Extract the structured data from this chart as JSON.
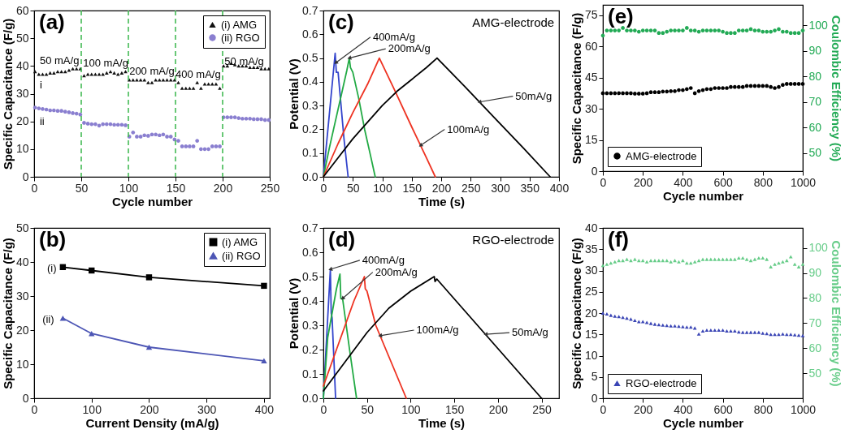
{
  "chart_data": [
    {
      "type": "scatter",
      "title": "(a)",
      "xlabel": "Cycle number",
      "ylabel": "Specific Capacitance (F/g)",
      "xlim": [
        0,
        250
      ],
      "ylim": [
        0,
        60
      ],
      "xticks": [
        0,
        50,
        100,
        150,
        200,
        250
      ],
      "yticks": [
        0,
        10,
        20,
        30,
        40,
        50,
        60
      ],
      "legend": "top right",
      "series": [
        {
          "name": "(i)  AMG",
          "color": "#111111",
          "marker": "triangle",
          "x": [
            1,
            5,
            9,
            13,
            17,
            21,
            25,
            29,
            33,
            37,
            41,
            45,
            49,
            53,
            57,
            61,
            65,
            69,
            73,
            77,
            81,
            85,
            89,
            93,
            97,
            101,
            105,
            109,
            113,
            117,
            121,
            125,
            129,
            133,
            137,
            141,
            145,
            149,
            153,
            157,
            161,
            165,
            169,
            173,
            177,
            181,
            185,
            189,
            193,
            197,
            201,
            205,
            209,
            213,
            217,
            221,
            225,
            229,
            233,
            237,
            241,
            245,
            249
          ],
          "values": [
            38,
            37,
            37,
            37,
            37.5,
            37.5,
            38,
            38,
            38,
            38.5,
            39,
            39,
            39,
            36.5,
            37,
            37,
            37,
            37,
            37,
            37.5,
            38,
            37.5,
            37,
            37.5,
            38,
            35,
            35,
            35,
            35,
            35,
            34,
            34,
            35,
            35,
            35,
            35,
            35,
            35,
            34,
            32,
            32,
            32,
            32,
            34,
            32,
            33.5,
            33.5,
            33.5,
            33.5,
            32,
            40,
            40,
            41,
            40.5,
            40,
            40,
            40,
            39.5,
            39.5,
            39.5,
            39,
            39,
            39
          ]
        },
        {
          "name": "(ii) RGO",
          "color": "#8a7fd0",
          "marker": "circle",
          "x": [
            1,
            5,
            9,
            13,
            17,
            21,
            25,
            29,
            33,
            37,
            41,
            45,
            49,
            53,
            57,
            61,
            65,
            69,
            73,
            77,
            81,
            85,
            89,
            93,
            97,
            101,
            105,
            109,
            113,
            117,
            121,
            125,
            129,
            133,
            137,
            141,
            145,
            149,
            153,
            157,
            161,
            165,
            169,
            173,
            177,
            181,
            185,
            189,
            193,
            197,
            201,
            205,
            209,
            213,
            217,
            221,
            225,
            229,
            233,
            237,
            241,
            245,
            249
          ],
          "values": [
            25,
            24.7,
            24.5,
            24.3,
            24,
            24,
            23.8,
            23.8,
            23.5,
            23.3,
            23,
            22.8,
            22.5,
            19.5,
            19.2,
            19,
            19,
            18.5,
            19,
            19,
            19,
            18.8,
            18.8,
            18.8,
            18.6,
            14.5,
            16,
            14.5,
            14.5,
            15,
            14.8,
            15.3,
            15.3,
            15,
            15.3,
            14.5,
            14.5,
            13.5,
            13,
            11,
            11,
            11,
            11,
            13,
            10,
            10,
            10,
            11,
            11,
            11,
            21.5,
            21.5,
            21.5,
            21.5,
            21.2,
            21,
            21,
            21,
            20.8,
            20.8,
            20.8,
            20.5,
            20.5
          ]
        }
      ],
      "ref_lines": [
        {
          "axis": "x",
          "value": 50,
          "color": "#44bb55",
          "line_style": "dashed"
        },
        {
          "axis": "x",
          "value": 100,
          "color": "#44bb55",
          "line_style": "dashed"
        },
        {
          "axis": "x",
          "value": 150,
          "color": "#44bb55",
          "line_style": "dashed"
        },
        {
          "axis": "x",
          "value": 200,
          "color": "#44bb55",
          "line_style": "dashed"
        }
      ],
      "annotations": [
        "50 mA/g",
        "100 mA/g",
        "200 mA/g",
        "400 mA/g",
        "50 mA/g",
        "i",
        "ii"
      ]
    },
    {
      "type": "line",
      "title": "(c)",
      "xlabel": "Time (s)",
      "ylabel": "Potential (V)",
      "xlim": [
        0,
        400
      ],
      "ylim": [
        0,
        0.7
      ],
      "xticks": [
        0,
        50,
        100,
        150,
        200,
        250,
        300,
        350,
        400
      ],
      "yticks": [
        {
          "value": 0,
          "label": "0.0"
        },
        0.1,
        0.2,
        0.3,
        0.4,
        0.5,
        0.6,
        0.7
      ],
      "marker": "none",
      "line_style": "solid",
      "series": [
        {
          "color": "#3344cc",
          "x": [
            0,
            5,
            10,
            15,
            20,
            22,
            25,
            30,
            35,
            42
          ],
          "values": [
            0,
            0.13,
            0.26,
            0.39,
            0.52,
            0.44,
            0.44,
            0.3,
            0.16,
            0
          ]
        },
        {
          "color": "#22aa44",
          "x": [
            0,
            10,
            20,
            30,
            40,
            44,
            46,
            50,
            60,
            70,
            80,
            88
          ],
          "values": [
            0,
            0.12,
            0.23,
            0.34,
            0.45,
            0.5,
            0.46,
            0.44,
            0.33,
            0.2,
            0.09,
            0
          ]
        },
        {
          "color": "#ee3322",
          "x": [
            0,
            25,
            50,
            75,
            95,
            120,
            150,
            175,
            190
          ],
          "values": [
            0,
            0.14,
            0.27,
            0.39,
            0.5,
            0.37,
            0.21,
            0.08,
            0
          ]
        },
        {
          "color": "#000000",
          "x": [
            0,
            25,
            50,
            75,
            100,
            125,
            150,
            175,
            193,
            240,
            290,
            340,
            385
          ],
          "values": [
            0,
            0.08,
            0.16,
            0.23,
            0.3,
            0.36,
            0.41,
            0.46,
            0.5,
            0.38,
            0.25,
            0.12,
            0
          ]
        }
      ],
      "annotations": [
        "AMG-electrode",
        {
          "text": "400mA/g",
          "x": 21,
          "y": 0.48
        },
        {
          "text": "200mA/g",
          "x": 44,
          "y": 0.5
        },
        {
          "text": "50mA/g",
          "x": 265,
          "y": 0.315
        },
        {
          "text": "100mA/g",
          "x": 165,
          "y": 0.132
        }
      ]
    },
    {
      "type": "scatter",
      "title": "(e)",
      "xlabel": "Cycle number",
      "ylabel": "Specific Capacitance (F/g)",
      "y2label": "Coulombic Efficiency (%)",
      "xlim": [
        0,
        1000
      ],
      "ylim": [
        0,
        80
      ],
      "y2lim": [
        43,
        108
      ],
      "xticks": [
        0,
        200,
        400,
        600,
        800,
        1000
      ],
      "yticks": [
        0,
        15,
        30,
        45,
        60,
        75
      ],
      "y2ticks": [
        50,
        60,
        70,
        80,
        90,
        100
      ],
      "legend": "bottom left",
      "marker": "circle",
      "series": [
        {
          "name": "AMG-electrode",
          "color": "#000000",
          "x": [
            0,
            20,
            40,
            60,
            80,
            100,
            120,
            140,
            160,
            180,
            200,
            220,
            240,
            260,
            280,
            300,
            320,
            340,
            360,
            380,
            400,
            420,
            440,
            460,
            480,
            500,
            520,
            540,
            560,
            580,
            600,
            620,
            640,
            660,
            680,
            700,
            720,
            740,
            760,
            780,
            800,
            820,
            840,
            860,
            880,
            900,
            920,
            940,
            960,
            980,
            1000
          ],
          "values": [
            37.5,
            37.5,
            37.5,
            37.5,
            37.5,
            37.5,
            37.5,
            37.5,
            37.3,
            37.3,
            37.3,
            37.5,
            38,
            38,
            38,
            38.3,
            38.3,
            38.5,
            38.5,
            39,
            39,
            39.5,
            40,
            37.5,
            38.5,
            39,
            39.5,
            39.5,
            40,
            40,
            40,
            40,
            40.5,
            40.5,
            40.5,
            40.5,
            41,
            41,
            41,
            41,
            41,
            41,
            40.5,
            40,
            40.5,
            41.5,
            42,
            42,
            42,
            42,
            42
          ]
        },
        {
          "color": "#22aa55",
          "axis": "y2",
          "x": [
            0,
            20,
            40,
            60,
            80,
            100,
            120,
            140,
            160,
            180,
            200,
            220,
            240,
            260,
            280,
            300,
            320,
            340,
            360,
            380,
            400,
            420,
            440,
            460,
            480,
            500,
            520,
            540,
            560,
            580,
            600,
            620,
            640,
            660,
            680,
            700,
            720,
            740,
            760,
            780,
            800,
            820,
            840,
            860,
            880,
            900,
            920,
            940,
            960,
            980,
            1000
          ],
          "values": [
            96,
            98,
            98,
            98,
            98,
            99,
            98,
            98,
            98,
            97.5,
            98,
            98,
            98,
            98,
            97,
            97,
            97.5,
            98,
            98,
            98,
            98,
            99,
            98,
            98,
            97.5,
            98,
            98,
            98,
            98,
            98,
            97.5,
            97,
            97,
            97,
            98,
            98,
            98,
            98.5,
            98,
            98,
            97.5,
            97.5,
            97.5,
            98,
            98.5,
            97.5,
            97.5,
            97,
            97,
            97,
            98
          ]
        }
      ]
    },
    {
      "type": "line",
      "title": "(b)",
      "xlabel": "Current Density (mA/g)",
      "ylabel": "Specific Capacitance (F/g)",
      "xlim": [
        0,
        410
      ],
      "ylim": [
        0,
        50
      ],
      "xticks": [
        0,
        100,
        200,
        300,
        400
      ],
      "yticks": [
        0,
        10,
        20,
        30,
        40,
        50
      ],
      "legend": "top right",
      "x": [
        50,
        100,
        200,
        400
      ],
      "series": [
        {
          "name": "(i) AMG",
          "color": "#000000",
          "marker": "square",
          "values": [
            38.5,
            37.5,
            35.5,
            33
          ]
        },
        {
          "name": "(ii) RGO",
          "color": "#4d56b5",
          "marker": "triangle",
          "values": [
            23.5,
            19,
            15,
            11
          ]
        }
      ],
      "annotations": [
        "(i)",
        "(ii)"
      ]
    },
    {
      "type": "line",
      "title": "(d)",
      "xlabel": "Time (s)",
      "ylabel": "Potential (V)",
      "xlim": [
        0,
        270
      ],
      "ylim": [
        0,
        0.7
      ],
      "xticks": [
        0,
        50,
        100,
        150,
        200,
        250
      ],
      "yticks": [
        {
          "value": 0,
          "label": "0.0"
        },
        0.1,
        0.2,
        0.3,
        0.4,
        0.5,
        0.6,
        0.7
      ],
      "marker": "none",
      "line_style": "solid",
      "series": [
        {
          "color": "#3344cc",
          "x": [
            0,
            3,
            8,
            9,
            10,
            14
          ],
          "values": [
            0,
            0.2,
            0.53,
            0.35,
            0.33,
            0
          ]
        },
        {
          "color": "#22aa44",
          "x": [
            0,
            5,
            15,
            19,
            20,
            22,
            30,
            38
          ],
          "values": [
            0,
            0.25,
            0.45,
            0.51,
            0.41,
            0.41,
            0.2,
            0
          ]
        },
        {
          "color": "#ee3322",
          "x": [
            0,
            10,
            25,
            35,
            47,
            48,
            50,
            60,
            95
          ],
          "values": [
            0.05,
            0.15,
            0.3,
            0.4,
            0.5,
            0.45,
            0.44,
            0.3,
            0
          ]
        },
        {
          "color": "#000000",
          "x": [
            0,
            25,
            50,
            75,
            100,
            127,
            128,
            130,
            250
          ],
          "values": [
            0.03,
            0.15,
            0.27,
            0.37,
            0.44,
            0.5,
            0.48,
            0.49,
            0
          ]
        }
      ],
      "annotations": [
        "RGO-electrode",
        {
          "text": "400mA/g",
          "x": 8,
          "y": 0.53
        },
        {
          "text": "200mA/g",
          "x": 22,
          "y": 0.41
        },
        {
          "text": "100mA/g",
          "x": 65,
          "y": 0.257
        },
        {
          "text": "50mA/g",
          "x": 186,
          "y": 0.263
        }
      ]
    },
    {
      "type": "scatter",
      "title": "(f)",
      "xlabel": "Cycle number",
      "ylabel": "Specific Capacitance (F/g)",
      "y2label": "Coulombic Efficiency (%)",
      "xlim": [
        0,
        1000
      ],
      "ylim": [
        0,
        40
      ],
      "y2lim": [
        40,
        108
      ],
      "xticks": [
        0,
        200,
        400,
        600,
        800,
        1000
      ],
      "yticks": [
        0,
        5,
        10,
        15,
        20,
        25,
        30,
        35,
        40
      ],
      "y2ticks": [
        50,
        60,
        70,
        80,
        90,
        100
      ],
      "legend": "bottom left",
      "marker": "triangle",
      "series": [
        {
          "name": "RGO-electrode",
          "color": "#3a45b5",
          "x": [
            0,
            20,
            40,
            60,
            80,
            100,
            120,
            140,
            160,
            180,
            200,
            220,
            240,
            260,
            280,
            300,
            320,
            340,
            360,
            380,
            400,
            420,
            440,
            460,
            480,
            500,
            520,
            540,
            560,
            580,
            600,
            620,
            640,
            660,
            680,
            700,
            720,
            740,
            760,
            780,
            800,
            820,
            840,
            860,
            880,
            900,
            920,
            940,
            960,
            980,
            1000
          ],
          "values": [
            20,
            19.8,
            19.5,
            19.3,
            19.2,
            19,
            18.8,
            18.6,
            18.3,
            18,
            18,
            17.8,
            17.6,
            17.4,
            17.3,
            17.2,
            17.1,
            17,
            17,
            16.9,
            16.8,
            16.7,
            16.7,
            16.5,
            15.1,
            15.8,
            16,
            16,
            16,
            16,
            16,
            15.8,
            15.8,
            15.8,
            15.6,
            15.5,
            15.5,
            15.5,
            15.5,
            15.5,
            15.3,
            15.2,
            15,
            15,
            15,
            15.1,
            15,
            15,
            14.9,
            14.8,
            14.7
          ]
        },
        {
          "color": "#66cc88",
          "axis": "y2",
          "x": [
            0,
            20,
            40,
            60,
            80,
            100,
            120,
            140,
            160,
            180,
            200,
            220,
            240,
            260,
            280,
            300,
            320,
            340,
            360,
            380,
            400,
            420,
            440,
            460,
            480,
            500,
            520,
            540,
            560,
            580,
            600,
            620,
            640,
            660,
            680,
            700,
            720,
            740,
            760,
            780,
            800,
            820,
            840,
            860,
            880,
            900,
            920,
            940,
            960,
            980,
            1000
          ],
          "values": [
            93,
            93.5,
            94,
            94.5,
            95,
            95,
            95.5,
            95,
            95.5,
            95,
            95,
            94.5,
            95,
            95,
            95,
            95,
            95,
            94.5,
            95,
            94.5,
            95,
            94,
            94,
            94.5,
            95,
            95.5,
            95.5,
            95.5,
            95.5,
            95.5,
            95.5,
            95.5,
            95.5,
            95.5,
            96,
            96,
            95.5,
            95,
            95.5,
            96,
            96,
            95.5,
            92.5,
            93.5,
            94,
            94.5,
            95,
            96.5,
            93.5,
            92.5,
            93.5
          ]
        }
      ]
    }
  ]
}
